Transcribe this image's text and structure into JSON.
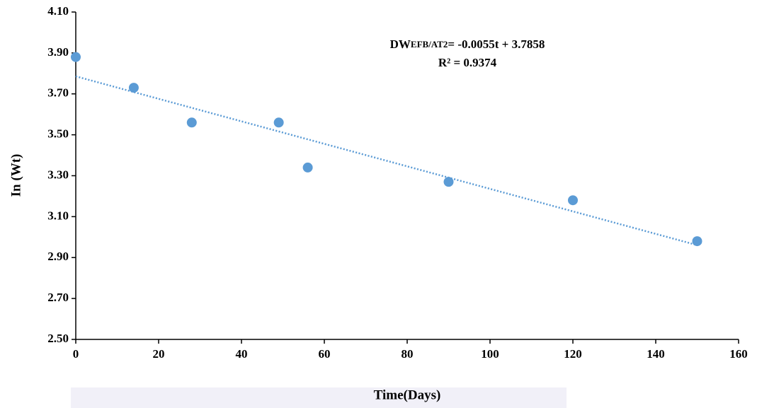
{
  "chart_data": {
    "type": "scatter",
    "x_label": "Time(Days)",
    "y_label": "In (Wt)",
    "x": [
      0,
      14,
      28,
      49,
      56,
      90,
      120,
      150
    ],
    "series": [
      {
        "color": "#5b9bd5",
        "values": [
          3.88,
          3.73,
          3.56,
          3.56,
          3.34,
          3.27,
          3.18,
          2.98
        ]
      }
    ],
    "trendline": {
      "slope": -0.0055,
      "intercept": 3.7858,
      "color": "#5b9bd5"
    },
    "annotation": {
      "lead": "DW",
      "sub": "EFB/AT2",
      "rest": "= -0.0055t + 3.7858",
      "r2": "R² = 0.9374"
    },
    "xlim": [
      0,
      160
    ],
    "xticks": [
      0,
      20,
      40,
      60,
      80,
      100,
      120,
      140,
      160
    ],
    "ylim": [
      2.5,
      4.1
    ],
    "yticks": [
      {
        "value": 2.5,
        "label": "2.50"
      },
      {
        "value": 2.7,
        "label": "2.70"
      },
      {
        "value": 2.9,
        "label": "2.90"
      },
      {
        "value": 3.1,
        "label": "3.10"
      },
      {
        "value": 3.3,
        "label": "3.30"
      },
      {
        "value": 3.5,
        "label": "3.50"
      },
      {
        "value": 3.7,
        "label": "3.70"
      },
      {
        "value": 3.9,
        "label": "3.90"
      },
      {
        "value": 4.1,
        "label": "4.10"
      }
    ],
    "grid": false
  }
}
